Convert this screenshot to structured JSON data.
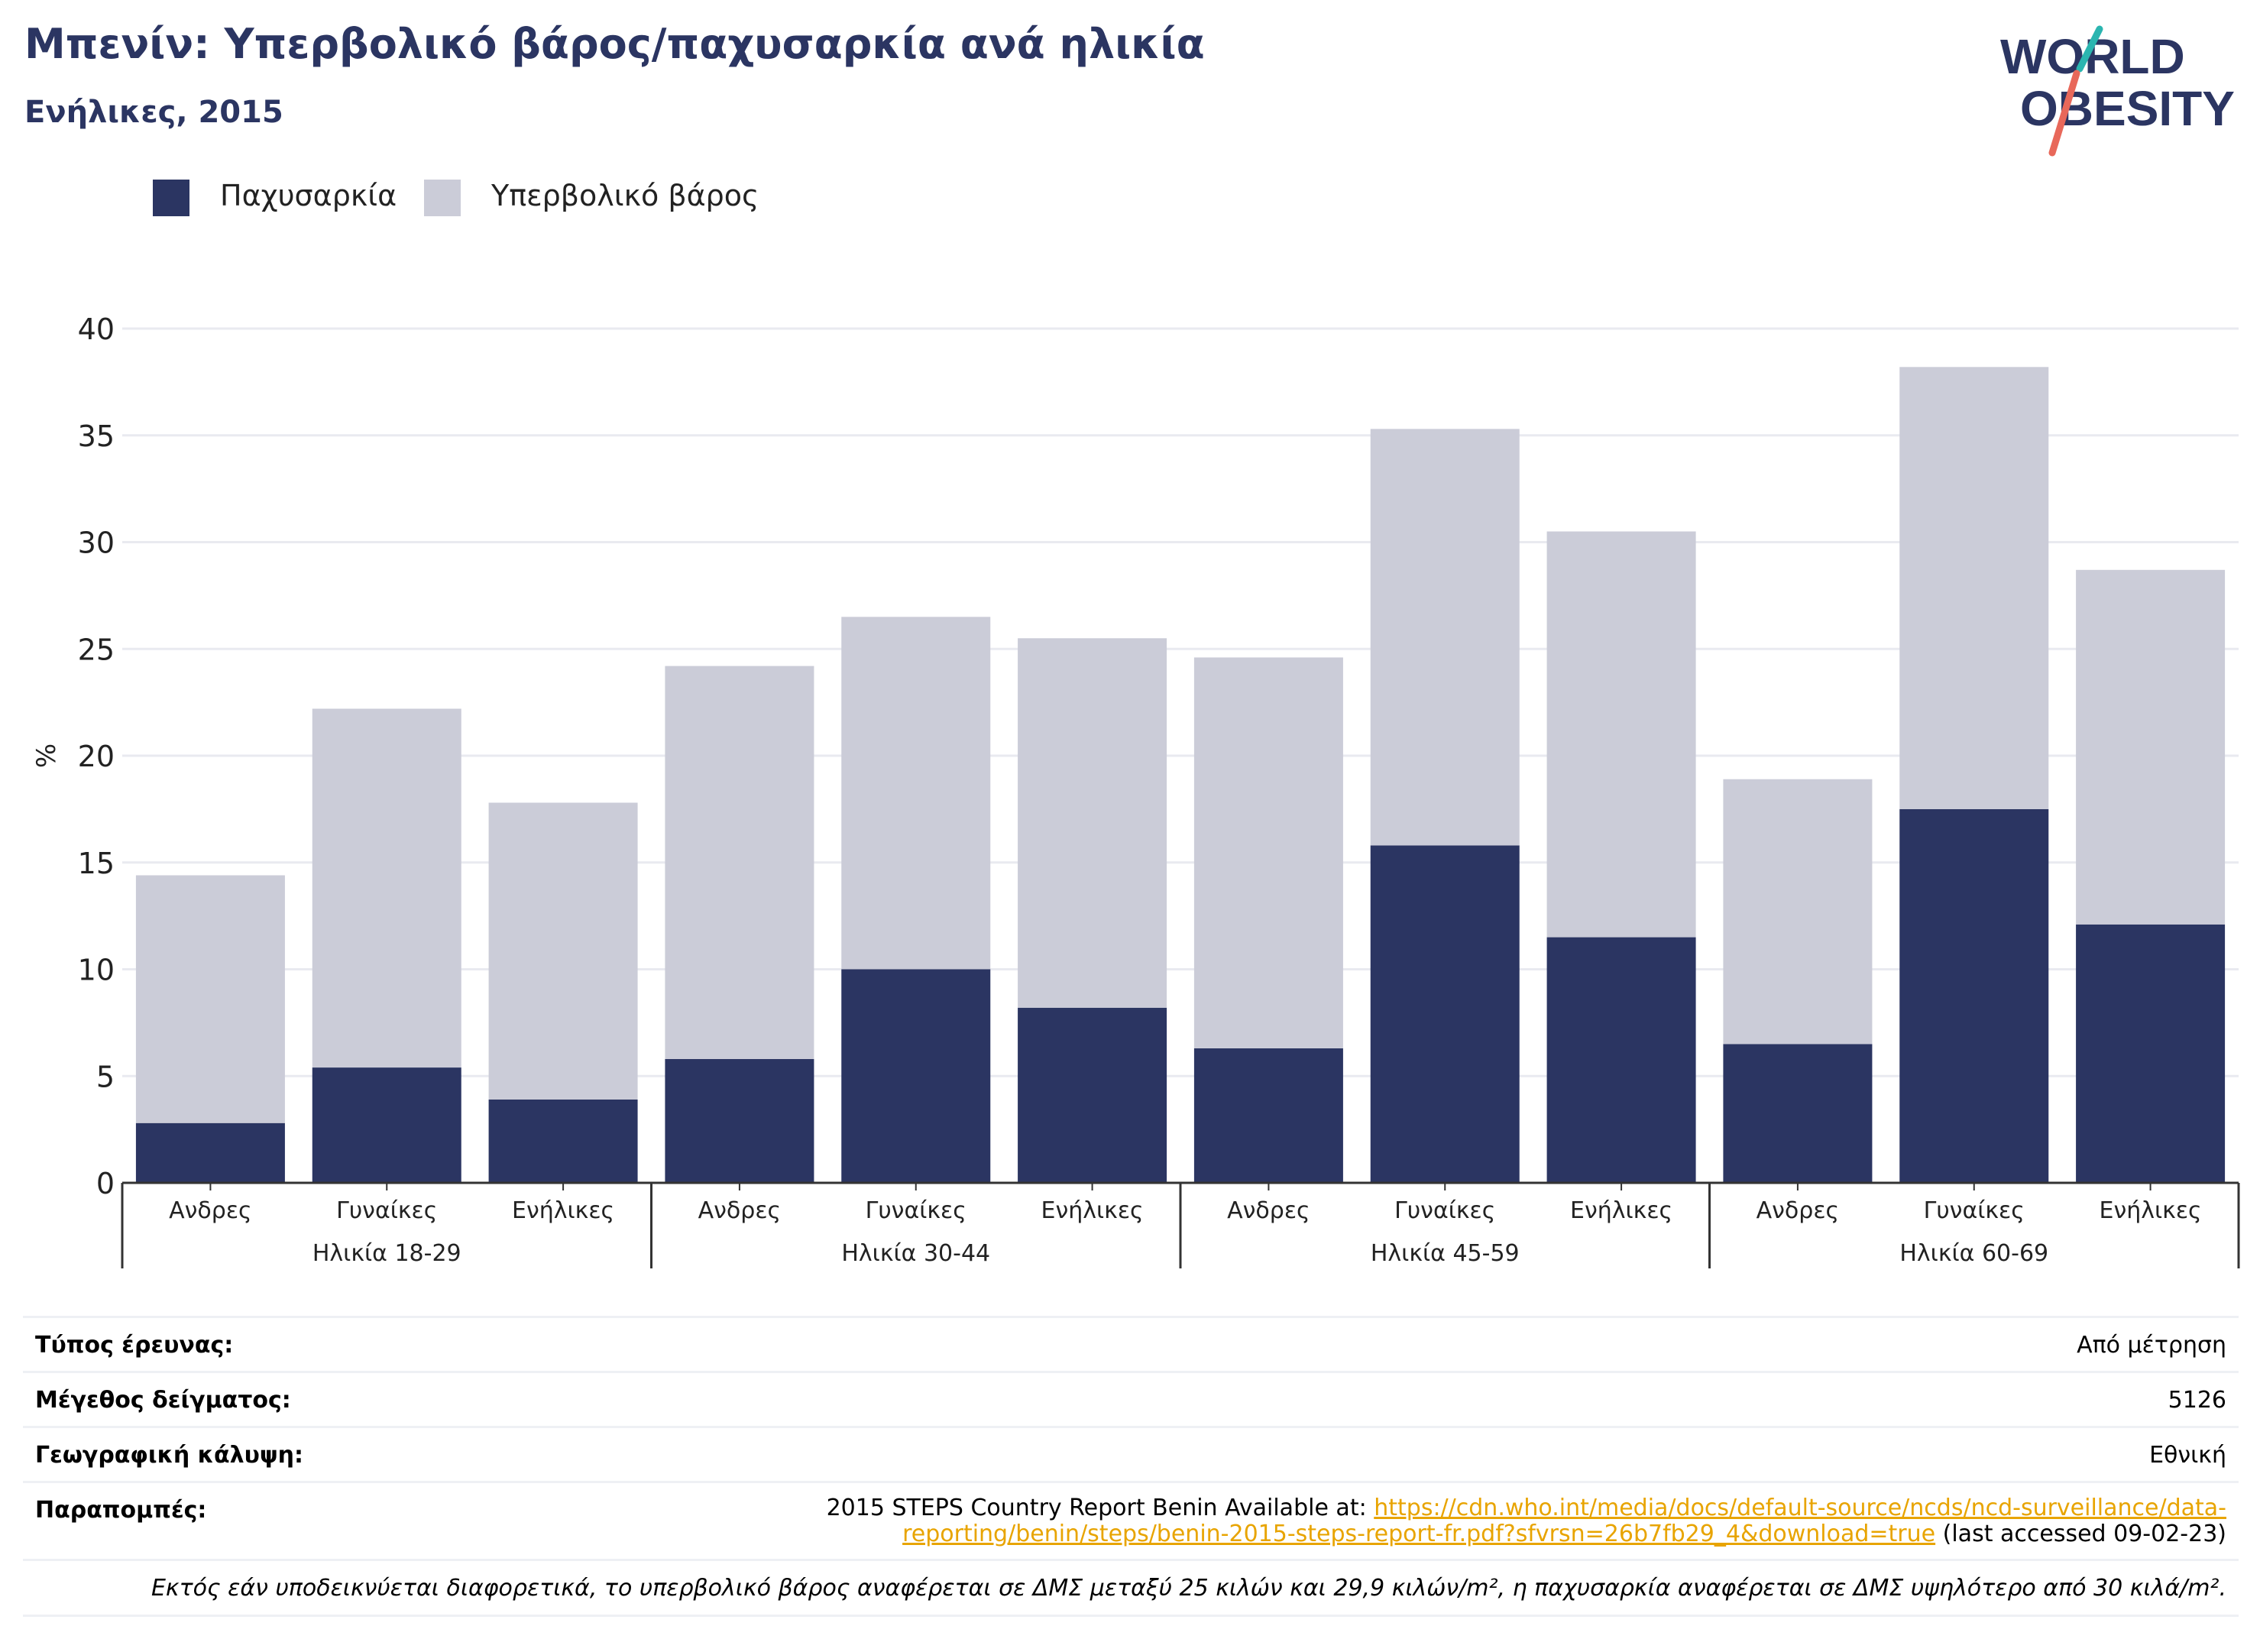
{
  "header": {
    "title": "Μπενίν: Υπερβολικό βάρος/παχυσαρκία ανά ηλικία",
    "subtitle": "Ενήλικες, 2015"
  },
  "logo": {
    "line1": "WORLD",
    "line2": "OBESITY"
  },
  "legend": [
    {
      "label": "Παχυσαρκία",
      "color": "#2b3562"
    },
    {
      "label": "Υπερβολικό βάρος",
      "color": "#cbccd8"
    }
  ],
  "chart_data": {
    "type": "bar",
    "stacked": true,
    "ylabel": "%",
    "ylim": [
      0,
      40
    ],
    "yticks": [
      0,
      5,
      10,
      15,
      20,
      25,
      30,
      35,
      40
    ],
    "grid": true,
    "legend_position": "top-left",
    "groups": [
      "Ηλικία 18-29",
      "Ηλικία 30-44",
      "Ηλικία 45-59",
      "Ηλικία 60-69"
    ],
    "categories": [
      "Ανδρες",
      "Γυναίκες",
      "Ενήλικες",
      "Ανδρες",
      "Γυναίκες",
      "Ενήλικες",
      "Ανδρες",
      "Γυναίκες",
      "Ενήλικες",
      "Ανδρες",
      "Γυναίκες",
      "Ενήλικες"
    ],
    "series": [
      {
        "name": "Παχυσαρκία",
        "color": "#2b3562",
        "values": [
          2.8,
          5.4,
          3.9,
          5.8,
          10.0,
          8.2,
          6.3,
          15.8,
          11.5,
          6.5,
          17.5,
          12.1
        ]
      },
      {
        "name": "Υπερβολικό βάρος",
        "color": "#cbccd8",
        "values": [
          11.6,
          16.8,
          13.9,
          18.4,
          16.5,
          17.3,
          18.3,
          19.5,
          19.0,
          12.4,
          20.7,
          16.6
        ]
      }
    ]
  },
  "info": {
    "survey_type_label": "Τύπος έρευνας:",
    "survey_type_value": "Από μέτρηση",
    "sample_size_label": "Μέγεθος δείγματος:",
    "sample_size_value": "5126",
    "coverage_label": "Γεωγραφική κάλυψη:",
    "coverage_value": "Εθνική",
    "references_label": "Παραπομπές:",
    "ref_prefix": "2015 STEPS Country Report Benin Available at: ",
    "ref_link_1": "https://cdn.who.int/media/docs/default-source/ncds/ncd-surveillance/data-",
    "ref_link_2": "reporting/benin/steps/benin-2015-steps-report-fr.pdf?sfvrsn=26b7fb29_4&download=true",
    "ref_suffix": " (last accessed 09-02-23)",
    "note": "Εκτός εάν υποδεικνύεται διαφορετικά, το υπερβολικό βάρος αναφέρεται σε ΔΜΣ μεταξύ 25 κιλών και 29,9 κιλών/m², η παχυσαρκία αναφέρεται σε ΔΜΣ υψηλότερο από 30 κιλά/m²."
  }
}
